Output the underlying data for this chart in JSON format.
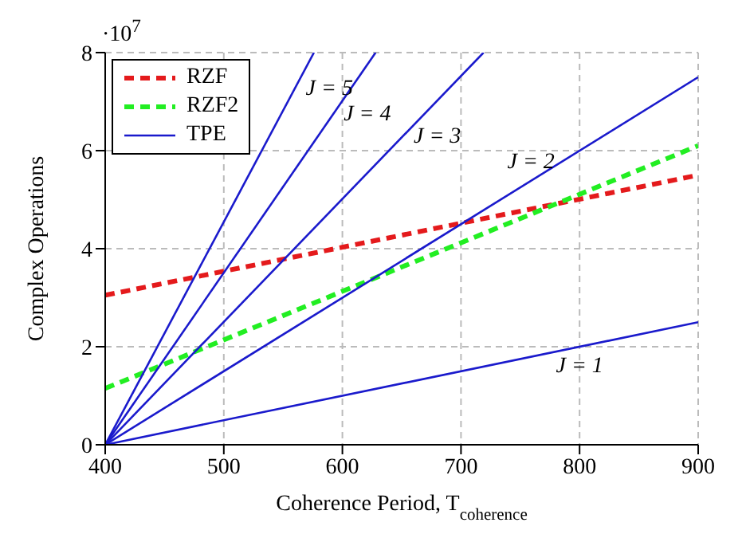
{
  "chart_data": {
    "type": "line",
    "xlabel": "Coherence Period, T$_{coherence}$",
    "ylabel": "Complex Operations",
    "xlim": [
      400,
      900
    ],
    "xticks": [
      400,
      500,
      600,
      700,
      800,
      900
    ],
    "ylim": [
      0,
      8
    ],
    "yticks": [
      0,
      2,
      4,
      6,
      8
    ],
    "grid": true,
    "legend": "top left",
    "marker": "none",
    "series": [
      {
        "name": "RZF",
        "color": "#e41a1c",
        "line_style": "dashed",
        "x": [
          400,
          900
        ],
        "values": [
          3.05,
          5.5
        ]
      },
      {
        "name": "RZF2",
        "color": "#22ee22",
        "line_style": "dashed",
        "x": [
          400,
          900
        ],
        "values": [
          1.15,
          6.1
        ]
      },
      {
        "name": "TPE",
        "color": "#1a1acc",
        "line_style": "solid",
        "x": [
          400,
          900
        ],
        "values": [
          0,
          2.5
        ]
      },
      {
        "color": "#1a1acc",
        "line_style": "solid",
        "x": [
          400,
          900
        ],
        "values": [
          0,
          7.5
        ]
      },
      {
        "color": "#1a1acc",
        "line_style": "solid",
        "x": [
          400,
          719
        ],
        "values": [
          0,
          8
        ]
      },
      {
        "color": "#1a1acc",
        "line_style": "solid",
        "x": [
          400,
          628
        ],
        "values": [
          0,
          8
        ]
      },
      {
        "color": "#1a1acc",
        "line_style": "solid",
        "x": [
          400,
          576
        ],
        "values": [
          0,
          8
        ]
      }
    ],
    "annotations": [
      "·10$^{7}$",
      {
        "text": "J = 5",
        "x": 561,
        "y": 7.3
      },
      {
        "text": "J = 4",
        "x": 593,
        "y": 6.78
      },
      {
        "text": "J = 3",
        "x": 652,
        "y": 6.32
      },
      {
        "text": "J = 2",
        "x": 787,
        "y": 5.8
      },
      {
        "text": "J = 1",
        "x": 800,
        "y": 2
      }
    ]
  }
}
